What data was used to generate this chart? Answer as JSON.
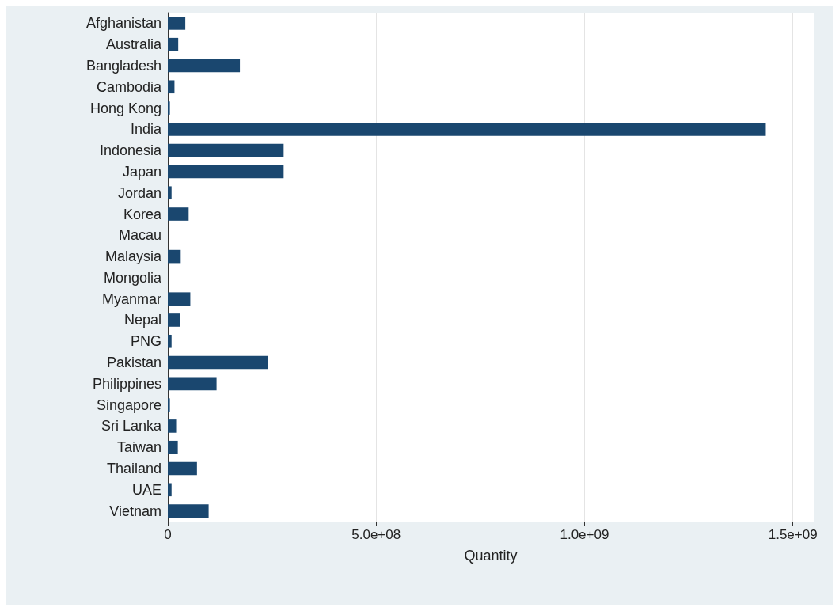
{
  "chart_data": {
    "type": "bar",
    "orientation": "horizontal",
    "xlabel": "Quantity",
    "categories": [
      "Afghanistan",
      "Australia",
      "Bangladesh",
      "Cambodia",
      "Hong Kong",
      "India",
      "Indonesia",
      "Japan",
      "Jordan",
      "Korea",
      "Macau",
      "Malaysia",
      "Mongolia",
      "Myanmar",
      "Nepal",
      "PNG",
      "Pakistan",
      "Philippines",
      "Singapore",
      "Sri Lanka",
      "Taiwan",
      "Thailand",
      "UAE",
      "Vietnam"
    ],
    "values": [
      42000000,
      25000000,
      173000000,
      16000000,
      5000000,
      1435000000,
      278000000,
      278000000,
      9000000,
      50000000,
      null,
      31000000,
      null,
      54000000,
      30000000,
      9000000,
      240000000,
      117000000,
      5000000,
      20000000,
      24000000,
      70000000,
      9000000,
      98000000
    ],
    "color": "#1a476f",
    "xlim": [
      0,
      1550000000
    ],
    "xticks": [
      0,
      {
        "value": 500000000,
        "label": "5.0e+08"
      },
      {
        "value": 1000000000,
        "label": "1.0e+09"
      },
      {
        "value": 1500000000,
        "label": "1.5e+09"
      }
    ],
    "grid": "x"
  }
}
